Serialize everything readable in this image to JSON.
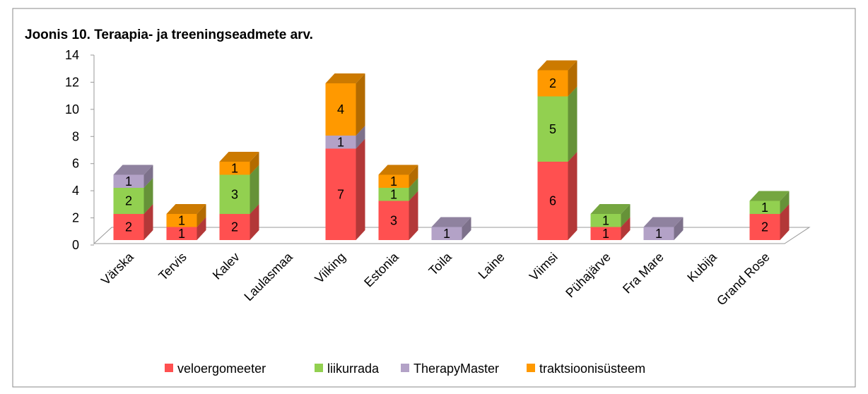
{
  "chart_data": {
    "type": "bar3d_stacked",
    "title": "Joonis 10. Teraapia- ja treeningseadmete arv.",
    "categories": [
      "Värska",
      "Tervis",
      "Kalev",
      "Laulasmaa",
      "Viiking",
      "Estonia",
      "Toila",
      "Laine",
      "Viimsi",
      "Pühajärve",
      "Fra Mare",
      "Kubija",
      "Grand Rose"
    ],
    "series": [
      {
        "name": "veloergomeeter",
        "color": "#ff5050",
        "values": [
          2,
          1,
          2,
          null,
          7,
          3,
          null,
          null,
          6,
          1,
          null,
          null,
          2
        ]
      },
      {
        "name": "liikurrada",
        "color": "#92d050",
        "values": [
          2,
          null,
          3,
          null,
          null,
          1,
          null,
          null,
          5,
          1,
          null,
          null,
          1
        ]
      },
      {
        "name": "TherapyMaster",
        "color": "#b3a2c7",
        "values": [
          1,
          null,
          null,
          null,
          1,
          null,
          1,
          null,
          null,
          null,
          1,
          null,
          null
        ]
      },
      {
        "name": "traktsioonisüsteem",
        "color": "#ff9900",
        "values": [
          null,
          1,
          1,
          null,
          4,
          1,
          null,
          null,
          2,
          null,
          null,
          null,
          null
        ]
      }
    ],
    "ylim": [
      0,
      14
    ],
    "yticks": [
      0,
      2,
      4,
      6,
      8,
      10,
      12,
      14
    ],
    "legend": "bottom"
  }
}
